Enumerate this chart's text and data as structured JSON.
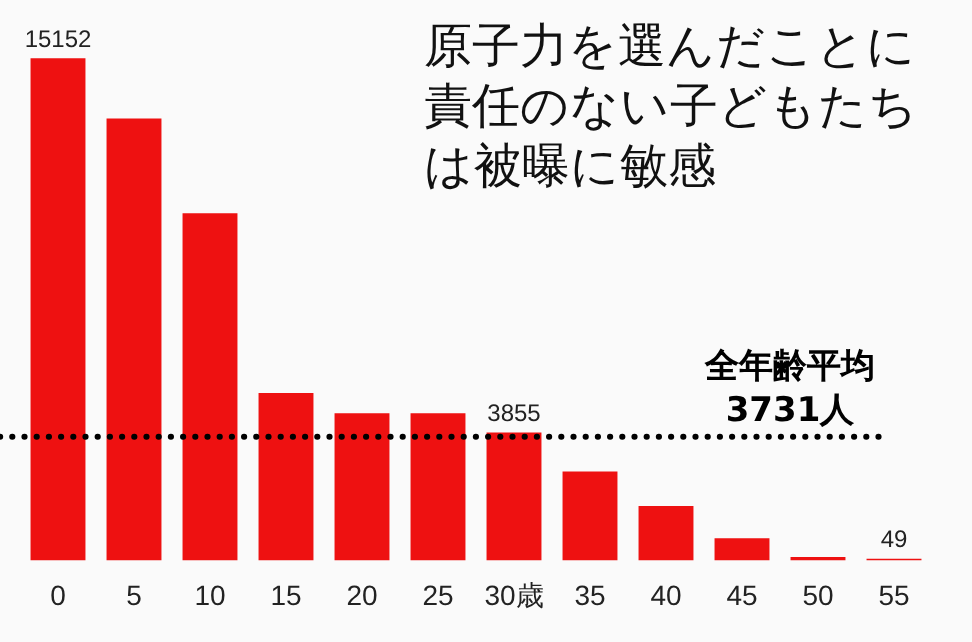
{
  "chart_data": {
    "type": "bar",
    "title": "原子力を選んだことに責任のない子どもたちは被曝に敏感",
    "categories": [
      "0",
      "5",
      "10",
      "15",
      "20",
      "25",
      "30歳",
      "35",
      "40",
      "45",
      "50",
      "55"
    ],
    "values": [
      15152,
      13330,
      10470,
      5050,
      4440,
      4440,
      3855,
      2680,
      1640,
      670,
      100,
      49
    ],
    "value_labels": [
      "15152",
      null,
      null,
      null,
      null,
      null,
      "3855",
      null,
      null,
      null,
      null,
      "49"
    ],
    "color": "#ee1111",
    "ref_lines": [
      {
        "axis": "y",
        "value": 3731,
        "label": "全年齢平均\n3731人",
        "color": "#000000",
        "line_style": "dotted"
      }
    ],
    "grid": false,
    "legend": false
  }
}
